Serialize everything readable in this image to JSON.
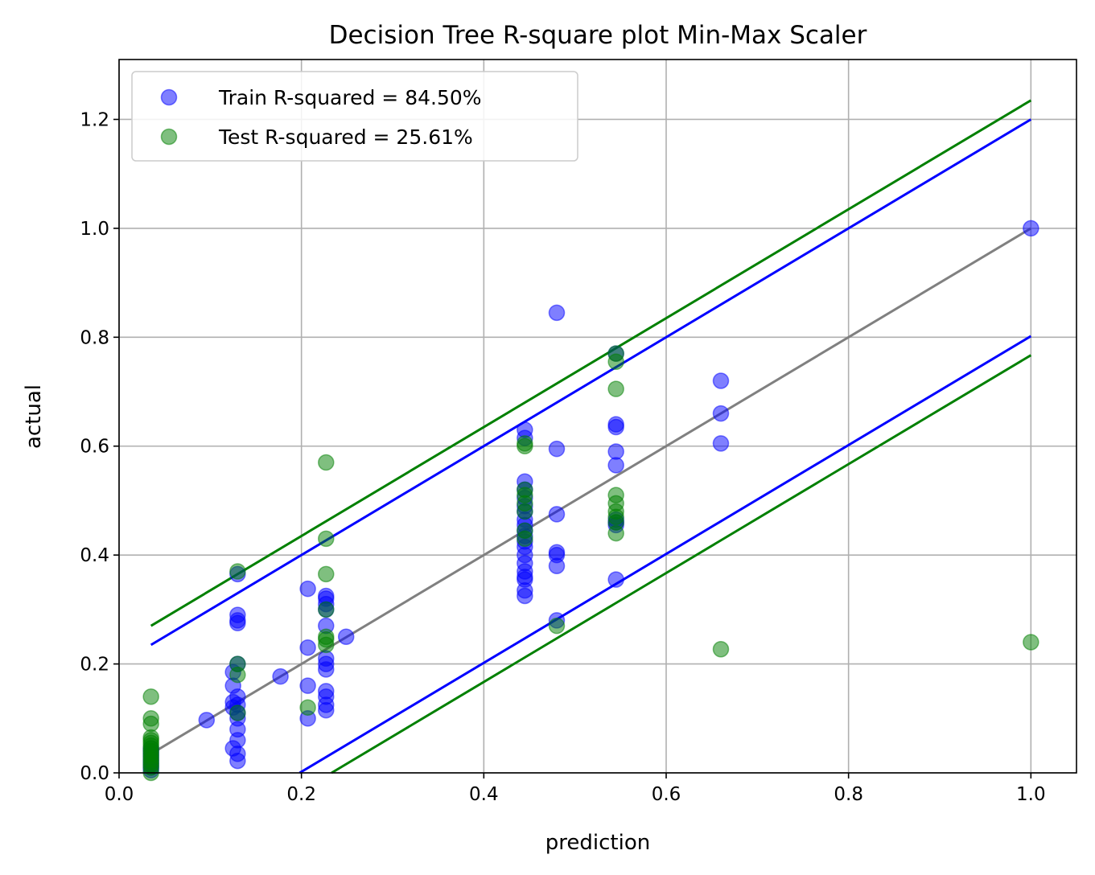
{
  "chart_data": {
    "type": "scatter",
    "title": "Decision Tree R-square plot Min-Max Scaler",
    "xlabel": "prediction",
    "ylabel": "actual",
    "xlim": [
      0.0,
      1.05
    ],
    "ylim": [
      0.0,
      1.31
    ],
    "xticks": [
      0.0,
      0.2,
      0.4,
      0.6,
      0.8,
      1.0
    ],
    "xtick_labels": [
      "0.0",
      "0.2",
      "0.4",
      "0.6",
      "0.8",
      "1.0"
    ],
    "yticks": [
      0.0,
      0.2,
      0.4,
      0.6,
      0.8,
      1.0,
      1.2
    ],
    "ytick_labels": [
      "0.0",
      "0.2",
      "0.4",
      "0.6",
      "0.8",
      "1.0",
      "1.2"
    ],
    "grid": true,
    "legend_position": "upper-left",
    "series": [
      {
        "name": "Train R-squared = 84.50%",
        "color": "#0000ff",
        "alpha": 0.5,
        "points": [
          [
            0.035,
            0.005
          ],
          [
            0.035,
            0.01
          ],
          [
            0.035,
            0.015
          ],
          [
            0.035,
            0.02
          ],
          [
            0.035,
            0.025
          ],
          [
            0.035,
            0.03
          ],
          [
            0.035,
            0.035
          ],
          [
            0.035,
            0.04
          ],
          [
            0.035,
            0.045
          ],
          [
            0.096,
            0.097
          ],
          [
            0.125,
            0.045
          ],
          [
            0.125,
            0.12
          ],
          [
            0.125,
            0.13
          ],
          [
            0.125,
            0.16
          ],
          [
            0.125,
            0.185
          ],
          [
            0.13,
            0.022
          ],
          [
            0.13,
            0.035
          ],
          [
            0.13,
            0.06
          ],
          [
            0.13,
            0.08
          ],
          [
            0.13,
            0.1
          ],
          [
            0.13,
            0.11
          ],
          [
            0.13,
            0.125
          ],
          [
            0.13,
            0.14
          ],
          [
            0.13,
            0.2
          ],
          [
            0.13,
            0.275
          ],
          [
            0.13,
            0.28
          ],
          [
            0.13,
            0.29
          ],
          [
            0.13,
            0.365
          ],
          [
            0.177,
            0.177
          ],
          [
            0.207,
            0.1
          ],
          [
            0.207,
            0.16
          ],
          [
            0.207,
            0.23
          ],
          [
            0.207,
            0.338
          ],
          [
            0.227,
            0.115
          ],
          [
            0.227,
            0.125
          ],
          [
            0.227,
            0.14
          ],
          [
            0.227,
            0.15
          ],
          [
            0.227,
            0.19
          ],
          [
            0.227,
            0.2
          ],
          [
            0.227,
            0.21
          ],
          [
            0.227,
            0.27
          ],
          [
            0.227,
            0.3
          ],
          [
            0.227,
            0.31
          ],
          [
            0.227,
            0.32
          ],
          [
            0.227,
            0.325
          ],
          [
            0.249,
            0.25
          ],
          [
            0.445,
            0.325
          ],
          [
            0.445,
            0.335
          ],
          [
            0.445,
            0.355
          ],
          [
            0.445,
            0.36
          ],
          [
            0.445,
            0.37
          ],
          [
            0.445,
            0.385
          ],
          [
            0.445,
            0.4
          ],
          [
            0.445,
            0.415
          ],
          [
            0.445,
            0.425
          ],
          [
            0.445,
            0.435
          ],
          [
            0.445,
            0.445
          ],
          [
            0.445,
            0.455
          ],
          [
            0.445,
            0.465
          ],
          [
            0.445,
            0.48
          ],
          [
            0.445,
            0.49
          ],
          [
            0.445,
            0.505
          ],
          [
            0.445,
            0.52
          ],
          [
            0.445,
            0.535
          ],
          [
            0.445,
            0.615
          ],
          [
            0.445,
            0.63
          ],
          [
            0.48,
            0.28
          ],
          [
            0.48,
            0.38
          ],
          [
            0.48,
            0.4
          ],
          [
            0.48,
            0.405
          ],
          [
            0.48,
            0.475
          ],
          [
            0.48,
            0.595
          ],
          [
            0.48,
            0.845
          ],
          [
            0.545,
            0.355
          ],
          [
            0.545,
            0.455
          ],
          [
            0.545,
            0.46
          ],
          [
            0.545,
            0.465
          ],
          [
            0.545,
            0.565
          ],
          [
            0.545,
            0.59
          ],
          [
            0.545,
            0.635
          ],
          [
            0.545,
            0.64
          ],
          [
            0.545,
            0.77
          ],
          [
            0.66,
            0.605
          ],
          [
            0.66,
            0.66
          ],
          [
            0.66,
            0.72
          ],
          [
            1.0,
            1.0
          ]
        ]
      },
      {
        "name": "Test R-squared = 25.61%",
        "color": "#008000",
        "alpha": 0.5,
        "points": [
          [
            0.035,
            0.0
          ],
          [
            0.035,
            0.01
          ],
          [
            0.035,
            0.015
          ],
          [
            0.035,
            0.02
          ],
          [
            0.035,
            0.025
          ],
          [
            0.035,
            0.03
          ],
          [
            0.035,
            0.035
          ],
          [
            0.035,
            0.04
          ],
          [
            0.035,
            0.045
          ],
          [
            0.035,
            0.05
          ],
          [
            0.035,
            0.055
          ],
          [
            0.035,
            0.06
          ],
          [
            0.035,
            0.065
          ],
          [
            0.035,
            0.09
          ],
          [
            0.035,
            0.1
          ],
          [
            0.035,
            0.14
          ],
          [
            0.13,
            0.11
          ],
          [
            0.13,
            0.18
          ],
          [
            0.13,
            0.2
          ],
          [
            0.13,
            0.37
          ],
          [
            0.207,
            0.12
          ],
          [
            0.227,
            0.235
          ],
          [
            0.227,
            0.245
          ],
          [
            0.227,
            0.25
          ],
          [
            0.227,
            0.3
          ],
          [
            0.227,
            0.365
          ],
          [
            0.227,
            0.43
          ],
          [
            0.227,
            0.57
          ],
          [
            0.445,
            0.43
          ],
          [
            0.445,
            0.445
          ],
          [
            0.445,
            0.48
          ],
          [
            0.445,
            0.495
          ],
          [
            0.445,
            0.51
          ],
          [
            0.445,
            0.52
          ],
          [
            0.445,
            0.6
          ],
          [
            0.445,
            0.605
          ],
          [
            0.48,
            0.27
          ],
          [
            0.545,
            0.44
          ],
          [
            0.545,
            0.46
          ],
          [
            0.545,
            0.47
          ],
          [
            0.545,
            0.48
          ],
          [
            0.545,
            0.495
          ],
          [
            0.545,
            0.51
          ],
          [
            0.545,
            0.705
          ],
          [
            0.545,
            0.755
          ],
          [
            0.545,
            0.77
          ],
          [
            0.66,
            0.227
          ],
          [
            1.0,
            0.24
          ]
        ]
      }
    ],
    "lines": [
      {
        "role": "identity",
        "color": "#808080",
        "x": [
          0.035,
          1.0
        ],
        "y": [
          0.035,
          1.0
        ]
      },
      {
        "role": "train-upper",
        "color": "#0000ff",
        "x": [
          0.035,
          1.0
        ],
        "y": [
          0.235,
          1.2
        ]
      },
      {
        "role": "train-lower",
        "color": "#0000ff",
        "x": [
          0.198,
          1.0
        ],
        "y": [
          0.0,
          0.802
        ]
      },
      {
        "role": "test-upper",
        "color": "#008000",
        "x": [
          0.035,
          1.0
        ],
        "y": [
          0.27,
          1.235
        ]
      },
      {
        "role": "test-lower",
        "color": "#008000",
        "x": [
          0.233,
          1.0
        ],
        "y": [
          0.0,
          0.767
        ]
      }
    ]
  }
}
